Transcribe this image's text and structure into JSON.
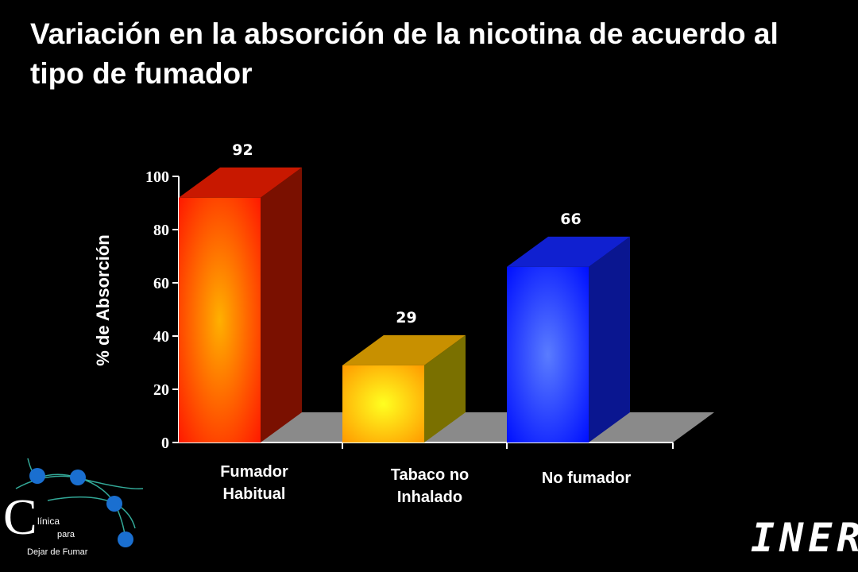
{
  "title": "Variación en la absorción de la nicotina de acuerdo al tipo de fumador",
  "chart_data": {
    "type": "bar",
    "title": "Variación en la absorción de la nicotina de acuerdo al tipo de fumador",
    "ylabel": "% de Absorción",
    "xlabel": "",
    "categories": [
      "Fumador Habitual",
      "Tabaco no Inhalado",
      "No fumador"
    ],
    "category_lines": [
      [
        "Fumador",
        "Habitual"
      ],
      [
        "Tabaco no",
        "Inhalado"
      ],
      [
        "No fumador"
      ]
    ],
    "values": [
      92,
      29,
      66
    ],
    "data_labels": [
      "92",
      "29",
      "66"
    ],
    "ylim": [
      0,
      100
    ],
    "yticks": [
      0,
      20,
      40,
      60,
      80,
      100
    ],
    "ytick_labels": [
      "0",
      "20",
      "40",
      "60",
      "80",
      "100"
    ],
    "bar_colors": [
      "#ff2a00",
      "#ffb000",
      "#1a2cff"
    ],
    "grid": false,
    "legend": "none"
  },
  "logos": {
    "clinic_letter": "C",
    "clinic_line1": "línica",
    "clinic_line2": "para",
    "clinic_line3": "Dejar de Fumar",
    "institute": "INER"
  }
}
